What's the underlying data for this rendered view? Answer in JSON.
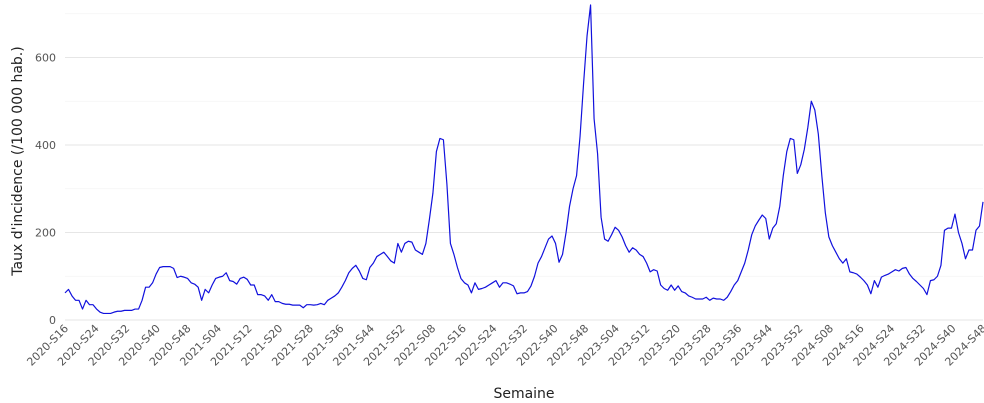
{
  "chart_data": {
    "type": "line",
    "xlabel": "Semaine",
    "ylabel": "Taux d'incidence (/100 000 hab.)",
    "ylim": [
      0,
      720
    ],
    "yticks": [
      0,
      200,
      400,
      600
    ],
    "grid": "horizontal",
    "legend": "none",
    "color": "#1111dd",
    "x_ticks": [
      "2020-S16",
      "2020-S24",
      "2020-S32",
      "2020-S40",
      "2020-S48",
      "2021-S04",
      "2021-S12",
      "2021-S20",
      "2021-S28",
      "2021-S36",
      "2021-S44",
      "2021-S52",
      "2022-S08",
      "2022-S16",
      "2022-S24",
      "2022-S32",
      "2022-S40",
      "2022-S48",
      "2023-S04",
      "2023-S12",
      "2023-S20",
      "2023-S28",
      "2023-S36",
      "2023-S44",
      "2023-S52",
      "2024-S08",
      "2024-S16",
      "2024-S24",
      "2024-S32",
      "2024-S40",
      "2024-S48"
    ],
    "x_start": "2020-S16",
    "x_end": "2024-S48",
    "series": [
      {
        "name": "",
        "values": [
          62,
          70,
          55,
          45,
          45,
          25,
          45,
          35,
          35,
          25,
          18,
          15,
          15,
          15,
          18,
          20,
          20,
          22,
          22,
          22,
          25,
          25,
          45,
          75,
          75,
          85,
          105,
          120,
          122,
          122,
          122,
          118,
          97,
          100,
          98,
          95,
          85,
          82,
          75,
          45,
          70,
          62,
          80,
          95,
          98,
          100,
          108,
          90,
          88,
          82,
          95,
          98,
          93,
          80,
          80,
          58,
          58,
          55,
          45,
          58,
          42,
          42,
          38,
          36,
          36,
          34,
          34,
          34,
          28,
          35,
          35,
          34,
          35,
          38,
          35,
          45,
          50,
          55,
          62,
          75,
          90,
          108,
          118,
          125,
          112,
          95,
          92,
          120,
          130,
          145,
          150,
          155,
          145,
          135,
          130,
          175,
          155,
          175,
          180,
          178,
          160,
          155,
          150,
          175,
          230,
          290,
          385,
          415,
          412,
          310,
          175,
          150,
          120,
          95,
          85,
          80,
          62,
          85,
          70,
          72,
          75,
          80,
          85,
          90,
          75,
          85,
          85,
          82,
          78,
          60,
          62,
          62,
          65,
          78,
          100,
          130,
          145,
          165,
          185,
          192,
          175,
          132,
          150,
          200,
          260,
          300,
          330,
          420,
          540,
          650,
          720,
          460,
          380,
          235,
          185,
          180,
          195,
          212,
          205,
          190,
          170,
          155,
          165,
          160,
          150,
          145,
          130,
          110,
          115,
          112,
          80,
          72,
          68,
          80,
          68,
          78,
          65,
          62,
          55,
          52,
          48,
          48,
          48,
          52,
          45,
          50,
          48,
          48,
          45,
          52,
          65,
          80,
          90,
          110,
          130,
          160,
          195,
          215,
          228,
          240,
          232,
          185,
          210,
          220,
          260,
          330,
          385,
          415,
          412,
          335,
          355,
          390,
          440,
          500,
          480,
          425,
          330,
          245,
          190,
          170,
          155,
          140,
          130,
          140,
          110,
          108,
          105,
          98,
          90,
          80,
          60,
          90,
          75,
          98,
          102,
          105,
          110,
          115,
          112,
          118,
          120,
          105,
          95,
          88,
          80,
          72,
          58,
          90,
          92,
          100,
          125,
          205,
          210,
          210,
          242,
          200,
          175,
          140,
          160,
          160,
          205,
          215,
          270
        ]
      }
    ]
  }
}
